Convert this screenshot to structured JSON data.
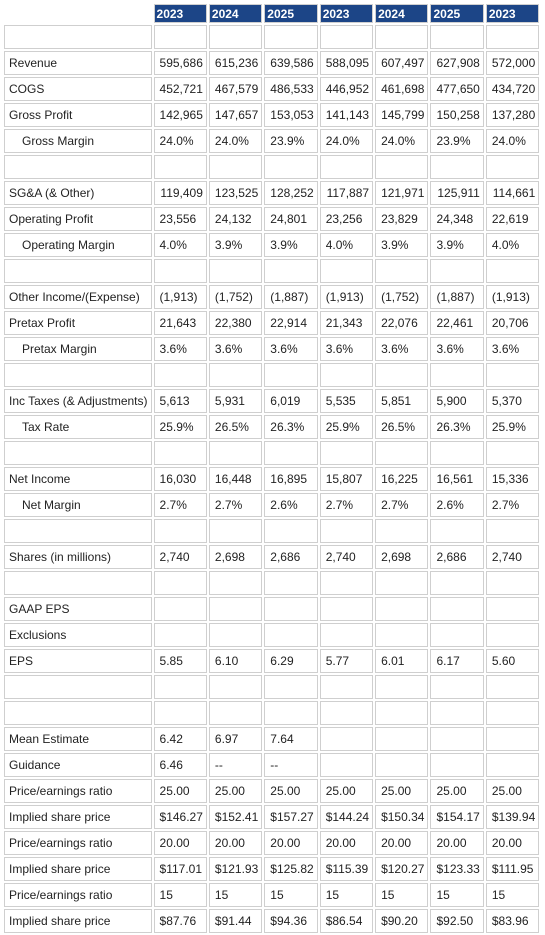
{
  "header_years": [
    "2023",
    "2024",
    "2025",
    "2023",
    "2024",
    "2025",
    "2023"
  ],
  "rows": [
    {
      "type": "blank"
    },
    {
      "type": "data",
      "label": "Revenue",
      "indent": false,
      "align": "right",
      "values": [
        "595,686",
        "615,236",
        "639,586",
        "588,095",
        "607,497",
        "627,908",
        "572,000"
      ]
    },
    {
      "type": "data",
      "label": "COGS",
      "indent": false,
      "align": "right",
      "values": [
        "452,721",
        "467,579",
        "486,533",
        "446,952",
        "461,698",
        "477,650",
        "434,720"
      ]
    },
    {
      "type": "data",
      "label": "Gross Profit",
      "indent": false,
      "align": "right",
      "values": [
        "142,965",
        "147,657",
        "153,053",
        "141,143",
        "145,799",
        "150,258",
        "137,280"
      ]
    },
    {
      "type": "data",
      "label": "Gross Margin",
      "indent": true,
      "align": "left",
      "values": [
        "24.0%",
        "24.0%",
        "23.9%",
        "24.0%",
        "24.0%",
        "23.9%",
        "24.0%"
      ]
    },
    {
      "type": "blank"
    },
    {
      "type": "data",
      "label": "SG&A (& Other)",
      "indent": false,
      "align": "right",
      "values": [
        "119,409",
        "123,525",
        "128,252",
        "117,887",
        "121,971",
        "125,911",
        "114,661"
      ]
    },
    {
      "type": "data",
      "label": "Operating Profit",
      "indent": false,
      "align": "left",
      "values": [
        "23,556",
        "24,132",
        "24,801",
        "23,256",
        "23,829",
        "24,348",
        "22,619"
      ]
    },
    {
      "type": "data",
      "label": "Operating Margin",
      "indent": true,
      "align": "left",
      "values": [
        "4.0%",
        "3.9%",
        "3.9%",
        "4.0%",
        "3.9%",
        "3.9%",
        "4.0%"
      ]
    },
    {
      "type": "blank"
    },
    {
      "type": "data",
      "label": "Other Income/(Expense)",
      "indent": false,
      "align": "left",
      "values": [
        "(1,913)",
        "(1,752)",
        "(1,887)",
        "(1,913)",
        "(1,752)",
        "(1,887)",
        "(1,913)"
      ]
    },
    {
      "type": "data",
      "label": "Pretax Profit",
      "indent": false,
      "align": "left",
      "values": [
        "21,643",
        "22,380",
        "22,914",
        "21,343",
        "22,076",
        "22,461",
        "20,706"
      ]
    },
    {
      "type": "data",
      "label": "Pretax Margin",
      "indent": true,
      "align": "left",
      "values": [
        "3.6%",
        "3.6%",
        "3.6%",
        "3.6%",
        "3.6%",
        "3.6%",
        "3.6%"
      ]
    },
    {
      "type": "blank"
    },
    {
      "type": "data",
      "label": "Inc Taxes (& Adjustments)",
      "indent": false,
      "align": "left",
      "values": [
        "5,613",
        "5,931",
        "6,019",
        "5,535",
        "5,851",
        "5,900",
        "5,370"
      ]
    },
    {
      "type": "data",
      "label": "Tax Rate",
      "indent": true,
      "align": "left",
      "values": [
        "25.9%",
        "26.5%",
        "26.3%",
        "25.9%",
        "26.5%",
        "26.3%",
        "25.9%"
      ]
    },
    {
      "type": "blank"
    },
    {
      "type": "data",
      "label": "Net Income",
      "indent": false,
      "align": "left",
      "values": [
        "16,030",
        "16,448",
        "16,895",
        "15,807",
        "16,225",
        "16,561",
        "15,336"
      ]
    },
    {
      "type": "data",
      "label": "Net Margin",
      "indent": true,
      "align": "left",
      "values": [
        "2.7%",
        "2.7%",
        "2.6%",
        "2.7%",
        "2.7%",
        "2.6%",
        "2.7%"
      ]
    },
    {
      "type": "blank"
    },
    {
      "type": "data",
      "label": "Shares (in millions)",
      "indent": false,
      "align": "left",
      "values": [
        "2,740",
        "2,698",
        "2,686",
        "2,740",
        "2,698",
        "2,686",
        "2,740"
      ]
    },
    {
      "type": "blank"
    },
    {
      "type": "data",
      "label": "GAAP EPS",
      "indent": false,
      "align": "left",
      "values": [
        "",
        "",
        "",
        "",
        "",
        "",
        ""
      ]
    },
    {
      "type": "data",
      "label": "Exclusions",
      "indent": false,
      "align": "left",
      "values": [
        "",
        "",
        "",
        "",
        "",
        "",
        ""
      ]
    },
    {
      "type": "data",
      "label": "EPS",
      "indent": false,
      "align": "left",
      "values": [
        "5.85",
        "6.10",
        "6.29",
        "5.77",
        "6.01",
        "6.17",
        "5.60"
      ]
    },
    {
      "type": "blank"
    },
    {
      "type": "blank"
    },
    {
      "type": "data",
      "label": "Mean Estimate",
      "indent": false,
      "align": "left",
      "values": [
        "6.42",
        "6.97",
        "7.64",
        "",
        "",
        "",
        ""
      ]
    },
    {
      "type": "data",
      "label": "Guidance",
      "indent": false,
      "align": "left",
      "values": [
        "6.46",
        "--",
        "--",
        "",
        "",
        "",
        ""
      ]
    },
    {
      "type": "data",
      "label": "Price/earnings ratio",
      "indent": false,
      "align": "left",
      "values": [
        "25.00",
        "25.00",
        "25.00",
        "25.00",
        "25.00",
        "25.00",
        "25.00"
      ]
    },
    {
      "type": "data",
      "label": "Implied share price",
      "indent": false,
      "align": "left",
      "values": [
        "$146.27",
        "$152.41",
        "$157.27",
        "$144.24",
        "$150.34",
        "$154.17",
        "$139.94"
      ]
    },
    {
      "type": "data",
      "label": "Price/earnings ratio",
      "indent": false,
      "align": "left",
      "values": [
        "20.00",
        "20.00",
        "20.00",
        "20.00",
        "20.00",
        "20.00",
        "20.00"
      ]
    },
    {
      "type": "data",
      "label": "Implied share price",
      "indent": false,
      "align": "left",
      "values": [
        "$117.01",
        "$121.93",
        "$125.82",
        "$115.39",
        "$120.27",
        "$123.33",
        "$111.95"
      ]
    },
    {
      "type": "data",
      "label": "Price/earnings ratio",
      "indent": false,
      "align": "left",
      "values": [
        "15",
        "15",
        "15",
        "15",
        "15",
        "15",
        "15"
      ]
    },
    {
      "type": "data",
      "label": "Implied share price",
      "indent": false,
      "align": "left",
      "values": [
        "$87.76",
        "$91.44",
        "$94.36",
        "$86.54",
        "$90.20",
        "$92.50",
        "$83.96"
      ]
    }
  ],
  "colors": {
    "header_bg": "#1c4587",
    "header_text": "#ffffff",
    "border": "#cfcfcf"
  }
}
